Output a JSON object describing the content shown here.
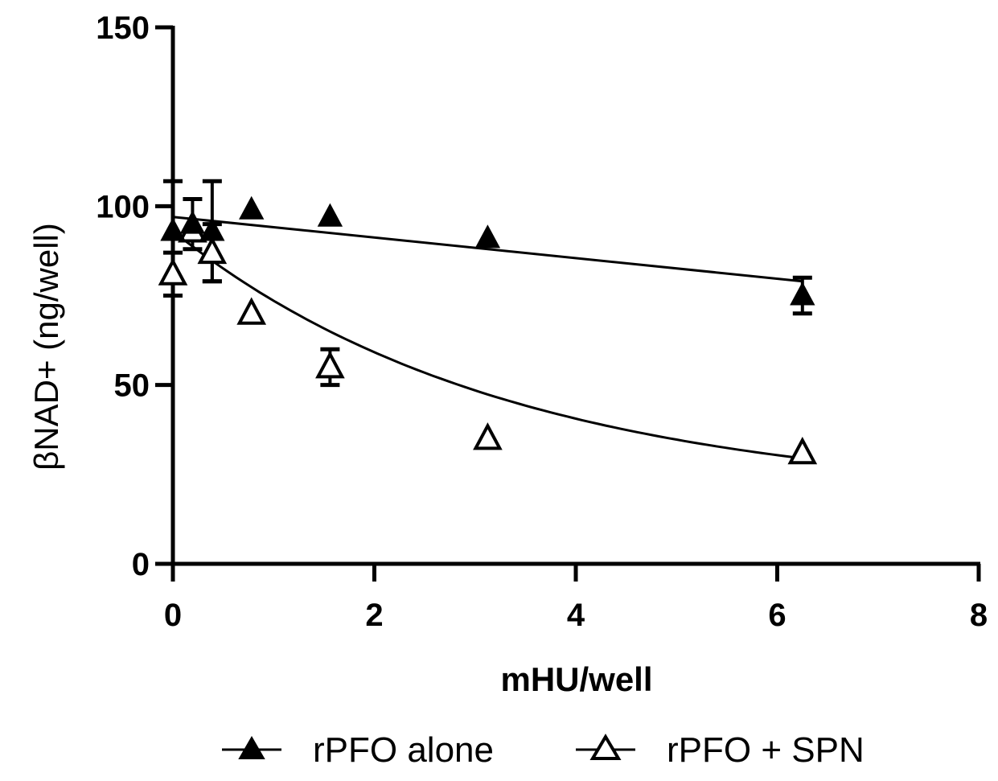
{
  "chart_data": {
    "type": "scatter",
    "title": "",
    "xlabel": "mHU/well",
    "ylabel": "βNAD+ (ng/well)",
    "xlim": [
      0,
      8
    ],
    "ylim": [
      0,
      150
    ],
    "xticks": [
      0,
      2,
      4,
      6,
      8
    ],
    "yticks": [
      0,
      50,
      100,
      150
    ],
    "x_tick_labels": [
      "0",
      "2",
      "4",
      "6",
      "8"
    ],
    "y_tick_labels": [
      "0",
      "50",
      "100",
      "150"
    ],
    "grid": false,
    "legend_position": "bottom",
    "series": [
      {
        "name": "rPFO alone",
        "marker": "filled-triangle",
        "x": [
          0.0,
          0.195,
          0.39,
          0.78,
          1.56,
          3.125,
          6.25
        ],
        "y": [
          93,
          95,
          93,
          99,
          97,
          91,
          75
        ],
        "error": [
          14,
          7,
          14,
          0,
          0,
          0,
          5
        ],
        "fit": {
          "type": "linear",
          "x": [
            0,
            6.25
          ],
          "y": [
            97,
            79
          ]
        }
      },
      {
        "name": "rPFO + SPN",
        "marker": "open-triangle",
        "x": [
          0.0,
          0.195,
          0.39,
          0.78,
          1.56,
          3.125,
          6.25
        ],
        "y": [
          81,
          93,
          87,
          70,
          55,
          35,
          31
        ],
        "error": [
          6,
          0,
          8,
          0,
          5,
          0,
          0
        ],
        "fit": {
          "type": "exp-decay",
          "y0": 93,
          "plateau": 18,
          "k": 0.3,
          "x_range": [
            0,
            6.25
          ]
        }
      }
    ]
  }
}
